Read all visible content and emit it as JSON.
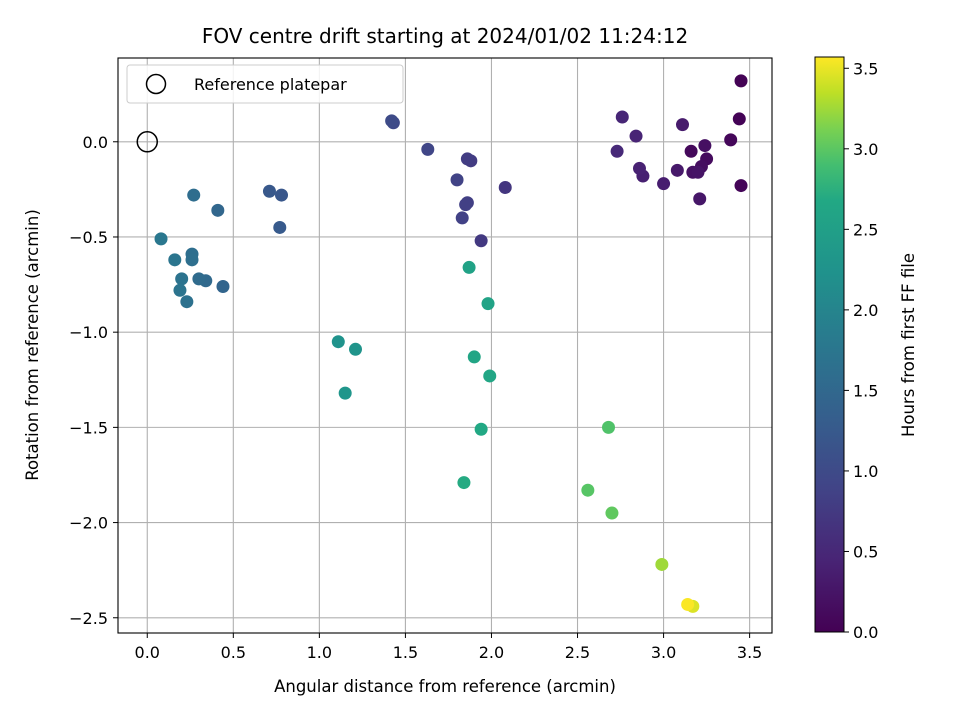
{
  "chart_data": {
    "type": "scatter",
    "title": "FOV centre drift starting at 2024/01/02 11:24:12",
    "xlabel": "Angular distance from reference (arcmin)",
    "ylabel": "Rotation from reference (arcmin)",
    "xlim": [
      -0.17,
      3.63
    ],
    "ylim": [
      -2.58,
      0.44
    ],
    "xticks": [
      0.0,
      0.5,
      1.0,
      1.5,
      2.0,
      2.5,
      3.0,
      3.5
    ],
    "xtick_labels": [
      "0.0",
      "0.5",
      "1.0",
      "1.5",
      "2.0",
      "2.5",
      "3.0",
      "3.5"
    ],
    "yticks": [
      0.0,
      -0.5,
      -1.0,
      -1.5,
      -2.0,
      -2.5
    ],
    "ytick_labels": [
      "0.0",
      "−0.5",
      "−1.0",
      "−1.5",
      "−2.0",
      "−2.5"
    ],
    "grid": true,
    "legend": {
      "placement": "top-left",
      "entries": [
        "Reference platepar"
      ]
    },
    "reference": {
      "x": 0.0,
      "y": 0.0
    },
    "colorbar": {
      "label": "Hours from first FF file",
      "range": [
        0.0,
        3.57
      ],
      "ticks": [
        0.0,
        0.5,
        1.0,
        1.5,
        2.0,
        2.5,
        3.0,
        3.5
      ],
      "tick_labels": [
        "0.0",
        "0.5",
        "1.0",
        "1.5",
        "2.0",
        "2.5",
        "3.0",
        "3.5"
      ],
      "colormap": "viridis"
    },
    "points": [
      {
        "x": 3.45,
        "y": 0.32,
        "c": 0.02
      },
      {
        "x": 3.44,
        "y": 0.12,
        "c": 0.03
      },
      {
        "x": 3.45,
        "y": -0.23,
        "c": 0.05
      },
      {
        "x": 3.39,
        "y": 0.01,
        "c": 0.08
      },
      {
        "x": 3.16,
        "y": -0.05,
        "c": 0.1
      },
      {
        "x": 3.25,
        "y": -0.09,
        "c": 0.13
      },
      {
        "x": 3.22,
        "y": -0.13,
        "c": 0.16
      },
      {
        "x": 3.24,
        "y": -0.02,
        "c": 0.19
      },
      {
        "x": 3.17,
        "y": -0.16,
        "c": 0.22
      },
      {
        "x": 3.2,
        "y": -0.16,
        "c": 0.24
      },
      {
        "x": 3.21,
        "y": -0.3,
        "c": 0.27
      },
      {
        "x": 3.08,
        "y": -0.15,
        "c": 0.3
      },
      {
        "x": 3.11,
        "y": 0.09,
        "c": 0.33
      },
      {
        "x": 3.0,
        "y": -0.22,
        "c": 0.36
      },
      {
        "x": 2.88,
        "y": -0.18,
        "c": 0.39
      },
      {
        "x": 2.86,
        "y": -0.14,
        "c": 0.42
      },
      {
        "x": 2.84,
        "y": 0.03,
        "c": 0.45
      },
      {
        "x": 2.76,
        "y": 0.13,
        "c": 0.48
      },
      {
        "x": 2.73,
        "y": -0.05,
        "c": 0.51
      },
      {
        "x": 2.08,
        "y": -0.24,
        "c": 0.7
      },
      {
        "x": 1.94,
        "y": -0.52,
        "c": 0.74
      },
      {
        "x": 1.88,
        "y": -0.1,
        "c": 0.78
      },
      {
        "x": 1.86,
        "y": -0.09,
        "c": 0.8
      },
      {
        "x": 1.86,
        "y": -0.32,
        "c": 0.82
      },
      {
        "x": 1.85,
        "y": -0.33,
        "c": 0.84
      },
      {
        "x": 1.83,
        "y": -0.4,
        "c": 0.86
      },
      {
        "x": 1.8,
        "y": -0.2,
        "c": 0.88
      },
      {
        "x": 1.63,
        "y": -0.04,
        "c": 0.92
      },
      {
        "x": 1.43,
        "y": 0.1,
        "c": 0.98
      },
      {
        "x": 1.42,
        "y": 0.11,
        "c": 1.0
      },
      {
        "x": 0.78,
        "y": -0.28,
        "c": 1.2
      },
      {
        "x": 0.71,
        "y": -0.26,
        "c": 1.22
      },
      {
        "x": 0.77,
        "y": -0.45,
        "c": 1.25
      },
      {
        "x": 0.44,
        "y": -0.76,
        "c": 1.45
      },
      {
        "x": 0.41,
        "y": -0.36,
        "c": 1.48
      },
      {
        "x": 0.34,
        "y": -0.73,
        "c": 1.52
      },
      {
        "x": 0.3,
        "y": -0.72,
        "c": 1.55
      },
      {
        "x": 0.27,
        "y": -0.28,
        "c": 1.58
      },
      {
        "x": 0.26,
        "y": -0.59,
        "c": 1.61
      },
      {
        "x": 0.26,
        "y": -0.62,
        "c": 1.63
      },
      {
        "x": 0.23,
        "y": -0.84,
        "c": 1.66
      },
      {
        "x": 0.2,
        "y": -0.72,
        "c": 1.69
      },
      {
        "x": 0.19,
        "y": -0.78,
        "c": 1.72
      },
      {
        "x": 0.16,
        "y": -0.62,
        "c": 1.74
      },
      {
        "x": 0.08,
        "y": -0.51,
        "c": 1.77
      },
      {
        "x": 1.11,
        "y": -1.05,
        "c": 2.25
      },
      {
        "x": 1.21,
        "y": -1.09,
        "c": 2.28
      },
      {
        "x": 1.15,
        "y": -1.32,
        "c": 2.31
      },
      {
        "x": 1.87,
        "y": -0.66,
        "c": 2.55
      },
      {
        "x": 1.98,
        "y": -0.85,
        "c": 2.58
      },
      {
        "x": 1.9,
        "y": -1.13,
        "c": 2.61
      },
      {
        "x": 1.99,
        "y": -1.23,
        "c": 2.64
      },
      {
        "x": 1.94,
        "y": -1.51,
        "c": 2.67
      },
      {
        "x": 1.84,
        "y": -1.79,
        "c": 2.7
      },
      {
        "x": 2.68,
        "y": -1.5,
        "c": 2.95
      },
      {
        "x": 2.56,
        "y": -1.83,
        "c": 2.98
      },
      {
        "x": 2.7,
        "y": -1.95,
        "c": 3.02
      },
      {
        "x": 2.99,
        "y": -2.22,
        "c": 3.25
      },
      {
        "x": 3.17,
        "y": -2.44,
        "c": 3.45
      },
      {
        "x": 3.14,
        "y": -2.43,
        "c": 3.56
      }
    ]
  }
}
